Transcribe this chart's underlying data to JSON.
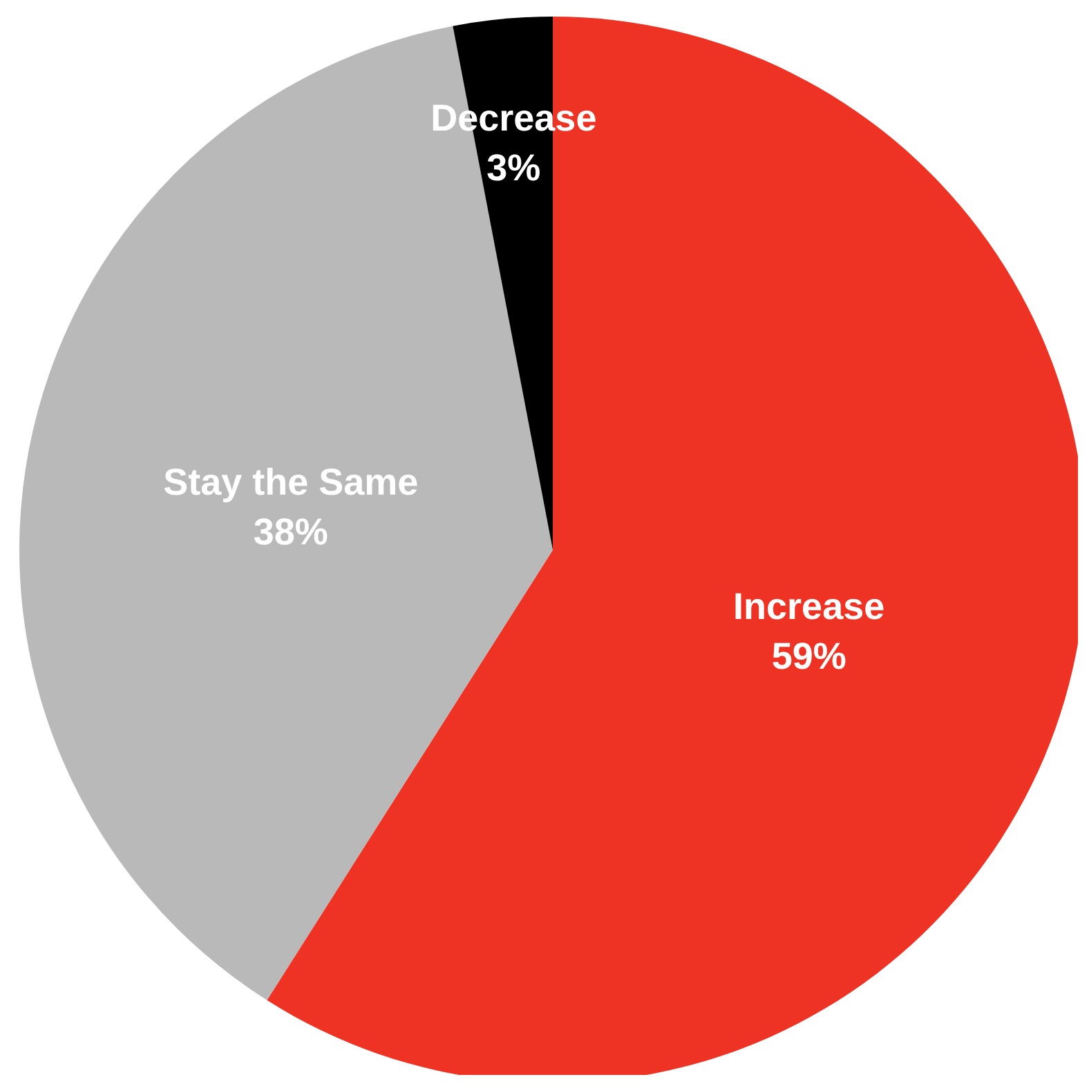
{
  "chart_data": {
    "type": "pie",
    "categories": [
      "Increase",
      "Stay the Same",
      "Decrease"
    ],
    "values": [
      59,
      38,
      3
    ],
    "colors": [
      "#ee3224",
      "#b9b9b9",
      "#000000"
    ],
    "value_labels": [
      "59%",
      "38%",
      "3%"
    ],
    "legend": false
  }
}
